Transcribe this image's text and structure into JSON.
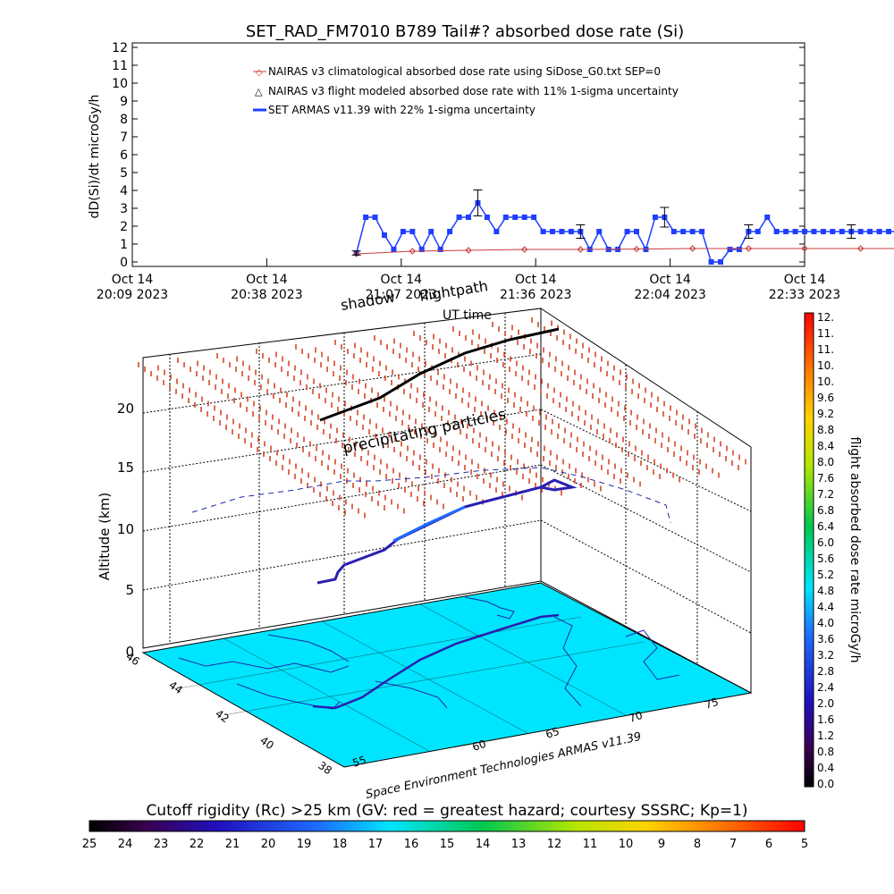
{
  "chart_data": {
    "type": "line",
    "title": "SET_RAD_FM7010  B789 Tail#? absorbed dose rate (Si)",
    "ylabel": "dD(Si)/dt microGy/h",
    "xlabel": "UT time",
    "ylim": [
      0,
      12
    ],
    "y_ticks": [
      "0",
      "1",
      "2",
      "3",
      "4",
      "5",
      "6",
      "7",
      "8",
      "9",
      "10",
      "11",
      "12"
    ],
    "x_ticks": [
      {
        "l1": "Oct 14",
        "l2": "20:09 2023"
      },
      {
        "l1": "Oct 14",
        "l2": "20:38 2023"
      },
      {
        "l1": "Oct 14",
        "l2": "21:07 2023"
      },
      {
        "l1": "Oct 14",
        "l2": "21:36 2023"
      },
      {
        "l1": "Oct 14",
        "l2": "22:04 2023"
      },
      {
        "l1": "Oct 14",
        "l2": "22:33 2023"
      }
    ],
    "legend": [
      "NAIRAS v3 climatological absorbed dose rate using SiDose_G0.txt SEP=0",
      "NAIRAS v3 flight modeled absorbed dose rate with 11% 1-sigma uncertainty",
      "SET ARMAS v11.39 with 22% 1-sigma uncertainty"
    ],
    "series": [
      {
        "name": "SET ARMAS v11.39 with 22% 1-sigma uncertainty",
        "color": "#1f3fff",
        "x_minutes": [
          48,
          50,
          52,
          54,
          56,
          58,
          60,
          62,
          64,
          66,
          68,
          70,
          72,
          74,
          76,
          78,
          80,
          82,
          84,
          86,
          88,
          90,
          92,
          94,
          96,
          98,
          100,
          102,
          104,
          106,
          108,
          110,
          112,
          114,
          116,
          118,
          120,
          122,
          124,
          126,
          128,
          130,
          132,
          134,
          136,
          138,
          140,
          142,
          144,
          146,
          148,
          150,
          152,
          154,
          156,
          158,
          160,
          162,
          164,
          166,
          168
        ],
        "values": [
          0.5,
          2.5,
          2.5,
          1.5,
          0.7,
          1.7,
          1.7,
          0.7,
          1.7,
          0.7,
          1.7,
          2.5,
          2.5,
          3.3,
          2.5,
          1.7,
          2.5,
          2.5,
          2.5,
          2.5,
          1.7,
          1.7,
          1.7,
          1.7,
          1.7,
          0.7,
          1.7,
          0.7,
          0.7,
          1.7,
          1.7,
          0.7,
          2.5,
          2.5,
          1.7,
          1.7,
          1.7,
          1.7,
          0,
          0,
          0.7,
          0.7,
          1.7,
          1.7,
          2.5,
          1.7,
          1.7,
          1.7,
          1.7,
          1.7,
          1.7,
          1.7,
          1.7,
          1.7,
          1.7,
          1.7,
          1.7,
          1.7,
          1.7,
          1.7,
          1.7
        ]
      },
      {
        "name": "NAIRAS v3 climatological absorbed dose rate using SiDose_G0.txt SEP=0",
        "color": "#c83c3c",
        "x_minutes": [
          48,
          60,
          72,
          84,
          96,
          108,
          120,
          132,
          144,
          156,
          164
        ],
        "values": [
          0.45,
          0.6,
          0.65,
          0.7,
          0.7,
          0.72,
          0.75,
          0.75,
          0.75,
          0.75,
          0.75
        ]
      }
    ],
    "error_bars_x_minutes": [
      48,
      74,
      96,
      114,
      132,
      154
    ],
    "panel3d": {
      "ylabel": "Altitude (km)",
      "altitude_ticks": [
        "0",
        "5",
        "10",
        "15",
        "20"
      ],
      "lat_ticks": [
        "46",
        "44",
        "42",
        "40",
        "38"
      ],
      "lon_ticks": [
        "55",
        "60",
        "65",
        "70",
        "75"
      ],
      "annotations": [
        "shadow",
        "flightpath",
        "precipitating particles",
        "UT time"
      ],
      "credit": "Space Environment Technologies ARMAS v11.39"
    },
    "right_colorbar": {
      "label": "flight absorbed dose rate microGy/h",
      "ticks": [
        "0.0",
        "0.4",
        "0.8",
        "1.2",
        "1.6",
        "2.0",
        "2.4",
        "2.8",
        "3.2",
        "3.6",
        "4.0",
        "4.4",
        "4.8",
        "5.2",
        "5.6",
        "6.0",
        "6.4",
        "6.8",
        "7.2",
        "7.6",
        "8.0",
        "8.4",
        "8.8",
        "9.2",
        "9.6",
        "10.",
        "10.",
        "11.",
        "11.",
        "12."
      ]
    },
    "bottom_colorbar": {
      "label": "Cutoff rigidity (Rc) >25 km (GV: red = greatest hazard; courtesy SSSRC; Kp=1)",
      "ticks": [
        "25",
        "24",
        "23",
        "22",
        "21",
        "20",
        "19",
        "18",
        "17",
        "16",
        "15",
        "14",
        "13",
        "12",
        "11",
        "10",
        "9",
        "8",
        "7",
        "6",
        "5"
      ]
    }
  }
}
